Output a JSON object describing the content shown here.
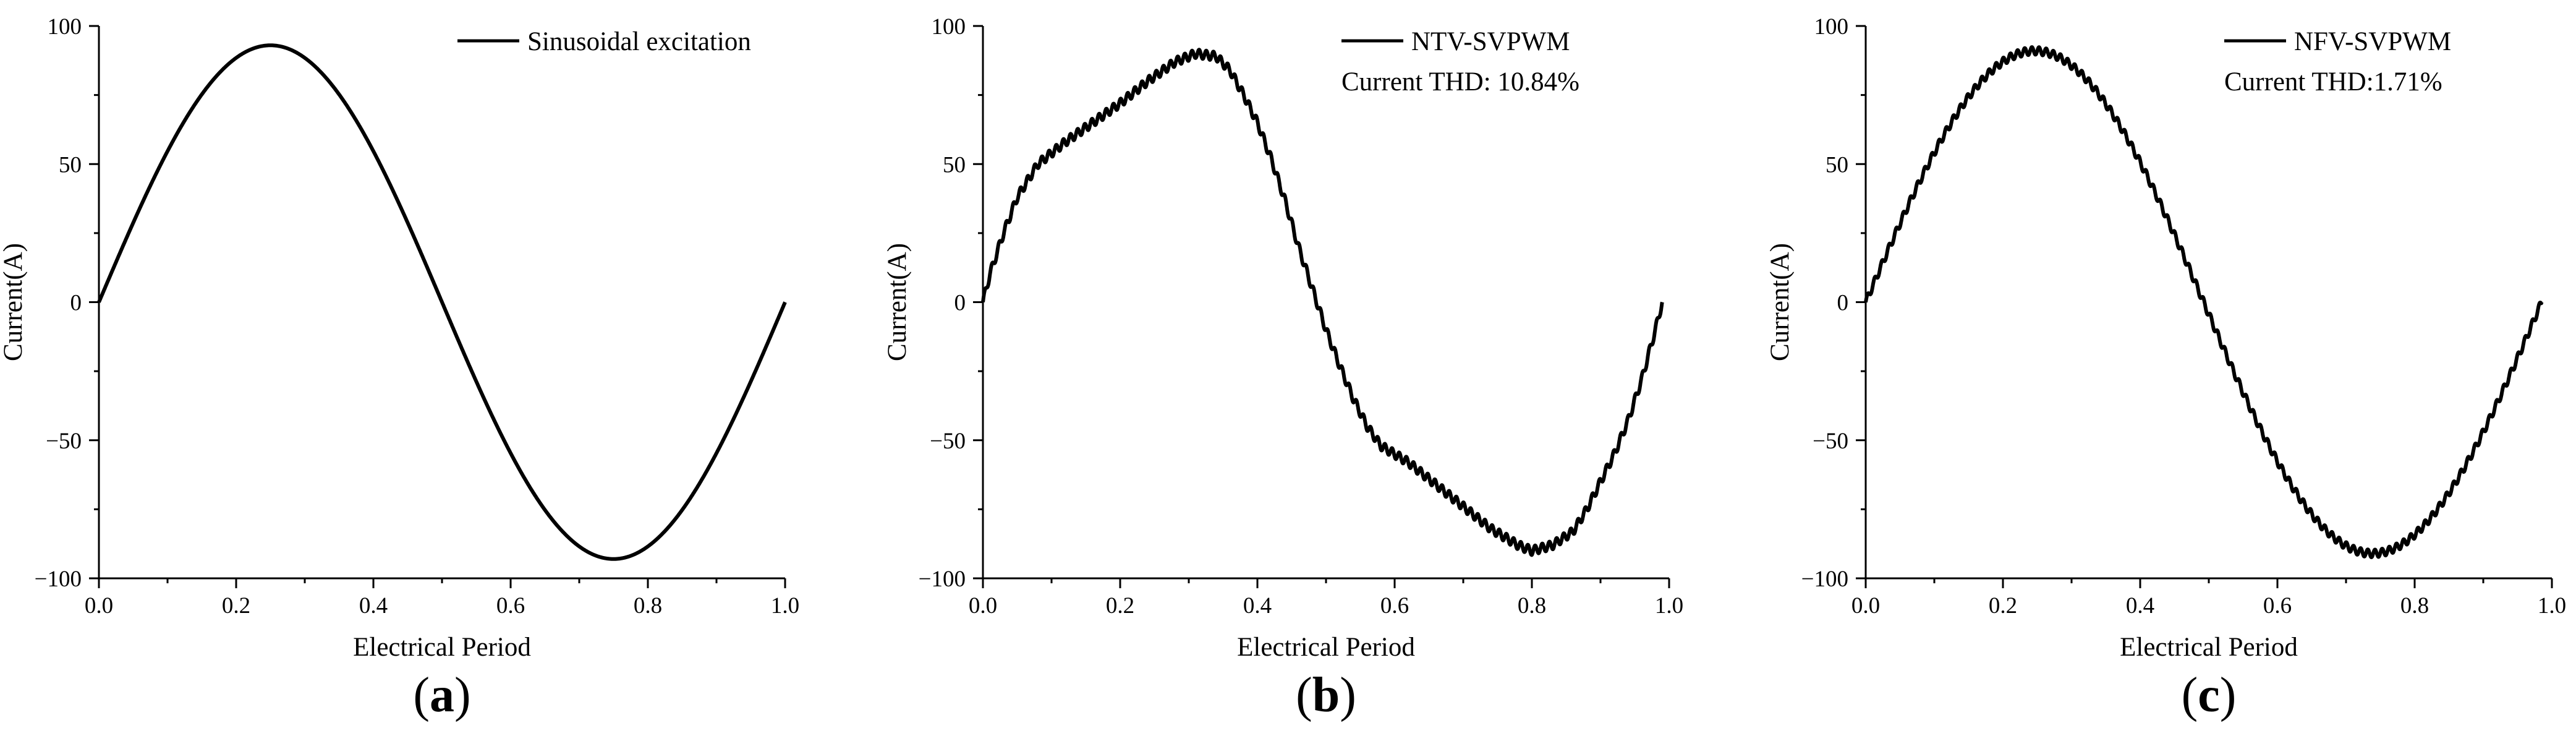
{
  "chart_data": [
    {
      "type": "line",
      "panel_label": "a",
      "xlabel": "Electrical Period",
      "ylabel": "Current(A)",
      "xlim": [
        0.0,
        1.0
      ],
      "ylim": [
        -100,
        100
      ],
      "x_ticks": [
        "0.0",
        "0.2",
        "0.4",
        "0.6",
        "0.8",
        "1.0"
      ],
      "y_ticks": [
        "100",
        "50",
        "0",
        "−50",
        "−100"
      ],
      "legend_position": "top-right",
      "legend": [
        "Sinusoidal excitation"
      ],
      "annotations": [],
      "series": [
        {
          "name": "Sinusoidal excitation",
          "color": "#000000",
          "model": "sinusoid",
          "amplitude": 93,
          "ripple_amplitude": 0,
          "points": []
        }
      ]
    },
    {
      "type": "line",
      "panel_label": "b",
      "xlabel": "Electrical Period",
      "ylabel": "Current(A)",
      "xlim": [
        0.0,
        1.0
      ],
      "ylim": [
        -100,
        100
      ],
      "x_ticks": [
        "0.0",
        "0.2",
        "0.4",
        "0.6",
        "0.8",
        "1.0"
      ],
      "y_ticks": [
        "100",
        "50",
        "0",
        "−50",
        "−100"
      ],
      "legend_position": "top-right",
      "legend": [
        "NTV-SVPWM"
      ],
      "annotations": [
        "Current THD: 10.84%"
      ],
      "series": [
        {
          "name": "NTV-SVPWM",
          "color": "#000000",
          "model": "piecewise",
          "ripple_amplitude": 1.6,
          "ripple_cycles": 96,
          "points": [
            [
              0.0,
              0
            ],
            [
              0.01,
              10
            ],
            [
              0.03,
              25
            ],
            [
              0.05,
              38
            ],
            [
              0.08,
              50
            ],
            [
              0.12,
              58
            ],
            [
              0.16,
              65
            ],
            [
              0.2,
              72
            ],
            [
              0.24,
              80
            ],
            [
              0.28,
              87
            ],
            [
              0.31,
              90
            ],
            [
              0.34,
              89
            ],
            [
              0.36,
              84
            ],
            [
              0.38,
              75
            ],
            [
              0.4,
              65
            ],
            [
              0.42,
              52
            ],
            [
              0.44,
              37
            ],
            [
              0.46,
              20
            ],
            [
              0.48,
              5
            ],
            [
              0.5,
              -10
            ],
            [
              0.52,
              -23
            ],
            [
              0.54,
              -35
            ],
            [
              0.56,
              -45
            ],
            [
              0.58,
              -52
            ],
            [
              0.62,
              -58
            ],
            [
              0.66,
              -66
            ],
            [
              0.7,
              -74
            ],
            [
              0.74,
              -82
            ],
            [
              0.78,
              -88
            ],
            [
              0.8,
              -90
            ],
            [
              0.83,
              -88
            ],
            [
              0.86,
              -83
            ],
            [
              0.88,
              -75
            ],
            [
              0.9,
              -65
            ],
            [
              0.92,
              -55
            ],
            [
              0.94,
              -43
            ],
            [
              0.96,
              -28
            ],
            [
              0.98,
              -10
            ],
            [
              0.99,
              0
            ]
          ]
        }
      ]
    },
    {
      "type": "line",
      "panel_label": "c",
      "xlabel": "Electrical Period",
      "ylabel": "Current(A)",
      "xlim": [
        0.0,
        1.0
      ],
      "ylim": [
        -100,
        100
      ],
      "x_ticks": [
        "0.0",
        "0.2",
        "0.4",
        "0.6",
        "0.8",
        "1.0"
      ],
      "y_ticks": [
        "100",
        "50",
        "0",
        "−50",
        "−100"
      ],
      "legend_position": "top-right",
      "legend": [
        "NFV-SVPWM"
      ],
      "annotations": [
        "Current THD:1.71%"
      ],
      "series": [
        {
          "name": "NFV-SVPWM",
          "color": "#000000",
          "model": "sinusoid",
          "amplitude": 91,
          "period": 0.985,
          "offset": 0,
          "ripple_amplitude": 1.4,
          "ripple_cycles": 96,
          "points": []
        }
      ]
    }
  ]
}
